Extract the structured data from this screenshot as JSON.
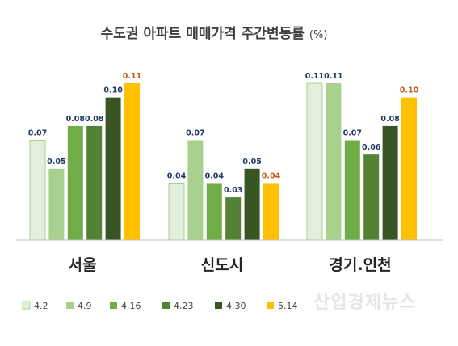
{
  "chart_data": {
    "type": "bar",
    "title": "수도권 아파트 매매가격 주간변동률",
    "title_unit": "(%)",
    "categories": [
      "서울",
      "신도시",
      "경기.인천"
    ],
    "series": [
      {
        "name": "4.2",
        "color": "#e2efda",
        "border": "#a9d18e",
        "values": [
          0.07,
          0.04,
          0.11
        ]
      },
      {
        "name": "4.9",
        "color": "#a9d18e",
        "values": [
          0.05,
          0.07,
          0.11
        ]
      },
      {
        "name": "4.16",
        "color": "#70ad47",
        "values": [
          0.08,
          0.04,
          0.07
        ]
      },
      {
        "name": "4.23",
        "color": "#548235",
        "values": [
          0.08,
          0.03,
          0.06
        ]
      },
      {
        "name": "4.30",
        "color": "#375623",
        "values": [
          0.1,
          0.05,
          0.08
        ]
      },
      {
        "name": "5.14",
        "color": "#ffc000",
        "values": [
          0.11,
          0.04,
          0.1
        ]
      }
    ],
    "label_color_default": "#1f3864",
    "label_color_highlight": "#c55a11",
    "ylim": [
      0,
      0.11
    ],
    "grid": false,
    "legend_position": "bottom"
  },
  "watermark": "산업경제뉴스"
}
